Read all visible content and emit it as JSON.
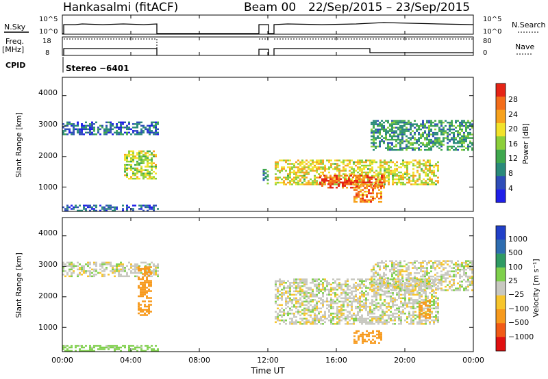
{
  "header": {
    "station": "Hankasalmi (fitACF)",
    "beam": "Beam 00",
    "dates": "22/Sep/2015 – 23/Sep/2015"
  },
  "strip_labels": {
    "nsky": "N.Sky",
    "nsky_top": "10^5",
    "nsky_bottom": "10^0",
    "nsearch": "N.Search",
    "nsearch_top": "10^5",
    "nsearch_bottom": "10^0",
    "freq_line1": "Freq.",
    "freq_line2": "[MHz]",
    "freq_top": "18",
    "freq_bottom": "8",
    "nave": "Nave",
    "nave_top": "80",
    "nave_bottom": "0",
    "cpid": "CPID",
    "cpid_value": "Stereo −6401"
  },
  "axes": {
    "xlabel": "Time UT",
    "ylabel": "Slant Range [km]",
    "xticks": [
      "00:00",
      "04:00",
      "08:00",
      "12:00",
      "16:00",
      "20:00",
      "00:00"
    ],
    "yticks": [
      "1000",
      "2000",
      "3000",
      "4000"
    ]
  },
  "colorbars": {
    "power": {
      "label": "Power [dB]",
      "ticks": [
        "4",
        "8",
        "12",
        "16",
        "20",
        "24",
        "28"
      ],
      "colors": [
        "#1f1fe8",
        "#2e4db8",
        "#2a8a7a",
        "#3fa84e",
        "#8ccf3a",
        "#f2e22a",
        "#f7a21d",
        "#f36d1a",
        "#e52416"
      ]
    },
    "velocity": {
      "label": "Velocity [m s⁻¹]",
      "ticks": [
        "1000",
        "500",
        "100",
        "25",
        "−25",
        "−100",
        "−500",
        "−1000"
      ],
      "colors": [
        "#2140c8",
        "#2e6db0",
        "#2f9a63",
        "#7fd04c",
        "#c8c8c0",
        "#f7c52c",
        "#f79a1d",
        "#f15a16",
        "#e01010"
      ]
    }
  },
  "chart_data": [
    {
      "type": "heatmap",
      "title": "Power",
      "xlabel": "Time UT",
      "ylabel": "Slant Range [km]",
      "xlim": [
        "00:00",
        "24:00"
      ],
      "ylim": [
        200,
        4600
      ],
      "colorbar_label": "Power [dB]",
      "colorbar_range": [
        0,
        30
      ],
      "regions": [
        {
          "t0": 0.0,
          "t1": 5.6,
          "r0": 2750,
          "r1": 3150,
          "level": 6
        },
        {
          "t0": 0.0,
          "t1": 5.6,
          "r0": 220,
          "r1": 420,
          "level": 5
        },
        {
          "t0": 3.6,
          "t1": 5.5,
          "r0": 1300,
          "r1": 2200,
          "level": 16
        },
        {
          "t0": 11.7,
          "t1": 12.0,
          "r0": 1100,
          "r1": 1650,
          "level": 10
        },
        {
          "t0": 12.4,
          "t1": 22.0,
          "r0": 1100,
          "r1": 1900,
          "level": 18
        },
        {
          "t0": 15.0,
          "t1": 18.8,
          "r0": 1000,
          "r1": 1400,
          "level": 26
        },
        {
          "t0": 17.0,
          "t1": 18.6,
          "r0": 500,
          "r1": 1100,
          "level": 24
        },
        {
          "t0": 18.0,
          "t1": 24.0,
          "r0": 2200,
          "r1": 3200,
          "level": 10
        }
      ]
    },
    {
      "type": "heatmap",
      "title": "Velocity",
      "xlabel": "Time UT",
      "ylabel": "Slant Range [km]",
      "xlim": [
        "00:00",
        "24:00"
      ],
      "ylim": [
        200,
        4600
      ],
      "colorbar_label": "Velocity [m s⁻¹]",
      "colorbar_range": [
        -1000,
        1000
      ],
      "regions": [
        {
          "t0": 0.0,
          "t1": 5.6,
          "r0": 2700,
          "r1": 3150,
          "level": 0
        },
        {
          "t0": 0.0,
          "t1": 5.6,
          "r0": 220,
          "r1": 420,
          "level": 60
        },
        {
          "t0": 4.4,
          "t1": 5.2,
          "r0": 1400,
          "r1": 3000,
          "level": -150
        },
        {
          "t0": 12.4,
          "t1": 22.0,
          "r0": 1100,
          "r1": 2600,
          "level": 0
        },
        {
          "t0": 17.0,
          "t1": 18.6,
          "r0": 500,
          "r1": 900,
          "level": -300
        },
        {
          "t0": 20.8,
          "t1": 21.5,
          "r0": 1300,
          "r1": 1900,
          "level": -200
        },
        {
          "t0": 18.0,
          "t1": 24.0,
          "r0": 2200,
          "r1": 3200,
          "level": 0
        }
      ]
    }
  ]
}
